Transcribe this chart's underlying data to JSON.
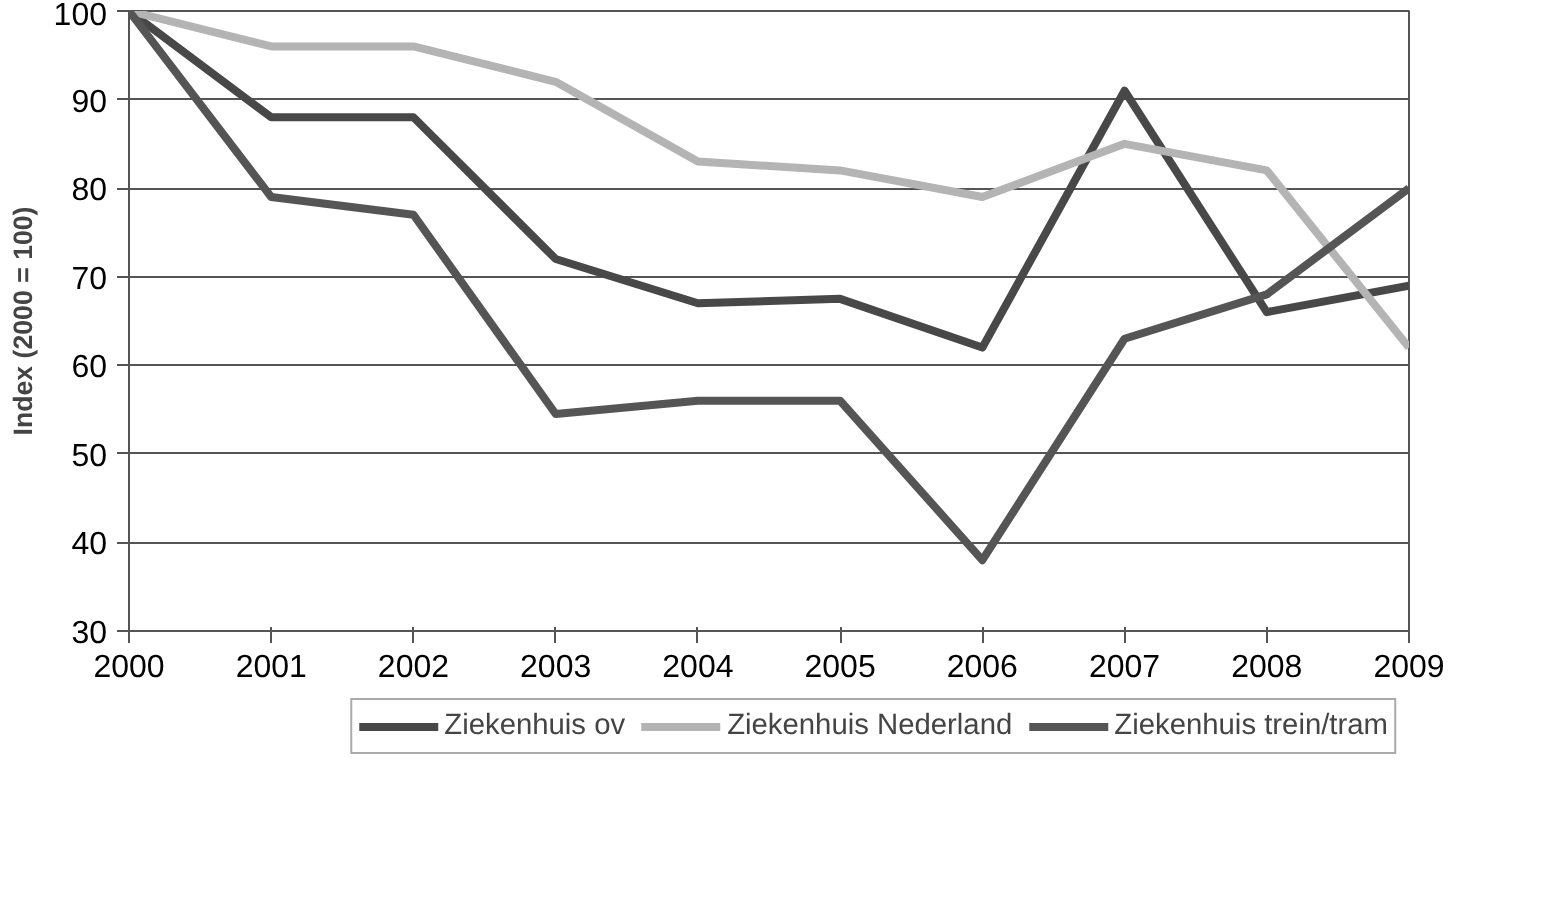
{
  "chart_data": {
    "type": "line",
    "ylabel": "Index (2000 = 100)",
    "x": [
      2000,
      2001,
      2002,
      2003,
      2004,
      2005,
      2006,
      2007,
      2008,
      2009
    ],
    "xlim": [
      2000,
      2009
    ],
    "xticks": [
      2000,
      2001,
      2002,
      2003,
      2004,
      2005,
      2006,
      2007,
      2008,
      2009
    ],
    "ylim": [
      30,
      100
    ],
    "yticks": [
      30,
      40,
      50,
      60,
      70,
      80,
      90,
      100
    ],
    "grid": "y",
    "legend": "bottom",
    "line_style": "solid",
    "series": [
      {
        "name": "Ziekenhuis ov",
        "color": "#484848",
        "values": [
          100,
          88,
          88,
          72,
          67,
          67.5,
          62,
          91,
          66,
          69
        ]
      },
      {
        "name": "Ziekenhuis Nederland",
        "color": "#b4b4b4",
        "values": [
          100,
          96,
          96,
          92,
          83,
          82,
          79,
          85,
          82,
          62
        ]
      },
      {
        "name": "Ziekenhuis trein/tram",
        "color": "#555555",
        "values": [
          100,
          79,
          77,
          54.5,
          56,
          56,
          38,
          63,
          68,
          80
        ]
      }
    ]
  }
}
